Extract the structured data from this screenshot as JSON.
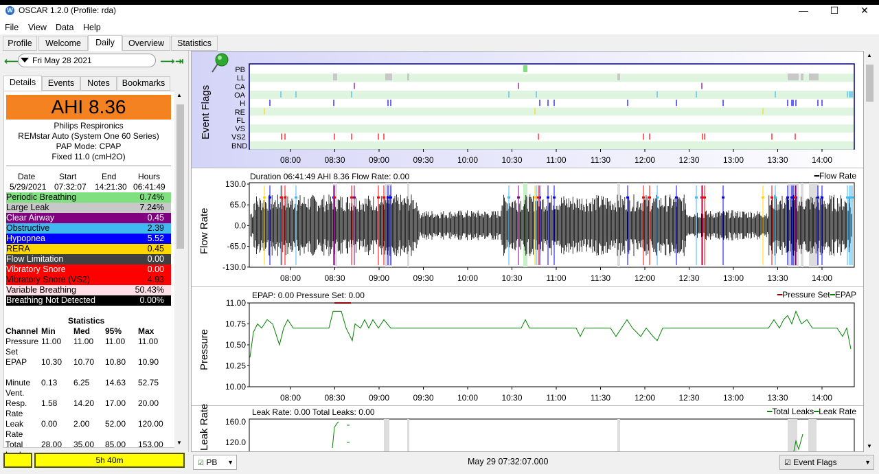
{
  "window": {
    "title": "OSCAR 1.2.0 (Profile: rda)",
    "minimize": "—",
    "maximize": "☐",
    "close": "✕",
    "app_icon": "W"
  },
  "menu": [
    "File",
    "View",
    "Data",
    "Help"
  ],
  "tabs": [
    "Profile",
    "Welcome",
    "Daily",
    "Overview",
    "Statistics"
  ],
  "date": {
    "value": "Fri May 28 2021",
    "prev": "⟵",
    "next": "⟶",
    "last": "⇥"
  },
  "left_tabs": [
    "Details",
    "Events",
    "Notes",
    "Bookmarks"
  ],
  "ahi": "AHI 8.36",
  "machine": [
    "Philips Respironics",
    "REMstar Auto (System One 60 Series)",
    "PAP Mode: CPAP",
    "Fixed 11.0 (cmH2O)"
  ],
  "session": {
    "headers": [
      "Date",
      "Start",
      "End",
      "Hours"
    ],
    "values": [
      "5/29/2021",
      "07:32:07",
      "14:21:30",
      "06:41:49"
    ]
  },
  "events": [
    {
      "label": "Periodic Breathing",
      "value": "0.74%",
      "bg": "#80e080",
      "fg": "#000"
    },
    {
      "label": "Large Leak",
      "value": "7.24%",
      "bg": "#c8c8c8",
      "fg": "#000"
    },
    {
      "label": "Clear Airway",
      "value": "0.45",
      "bg": "#800080",
      "fg": "#fff"
    },
    {
      "label": "Obstructive",
      "value": "2.39",
      "bg": "#40b8f0",
      "fg": "#000"
    },
    {
      "label": "Hypopnea",
      "value": "5.52",
      "bg": "#0000ff",
      "fg": "#fff"
    },
    {
      "label": "RERA",
      "value": "0.45",
      "bg": "#ffd700",
      "fg": "#000"
    },
    {
      "label": "Flow Limitation",
      "value": "0.00",
      "bg": "#404040",
      "fg": "#fff"
    },
    {
      "label": "Vibratory Snore",
      "value": "0.00",
      "bg": "#ff0000",
      "fg": "#fff"
    },
    {
      "label": "Vibratory Snore (VS2)",
      "value": "4.93",
      "bg": "#ff0000",
      "fg": "#000"
    },
    {
      "label": "Variable Breathing",
      "value": "50.43%",
      "bg": "#ffe0e8",
      "fg": "#000"
    },
    {
      "label": "Breathing Not Detected",
      "value": "0.00%",
      "bg": "#000000",
      "fg": "#fff"
    }
  ],
  "statistics": {
    "title": "Statistics",
    "headers": [
      "Channel",
      "Min",
      "Med",
      "95%",
      "Max"
    ],
    "rows": [
      {
        "name": "Pressure Set",
        "v": [
          "11.00",
          "11.00",
          "11.00",
          "11.00"
        ]
      },
      {
        "name": "EPAP",
        "v": [
          "10.30",
          "10.70",
          "10.80",
          "10.90"
        ]
      },
      {
        "name": "Minute Vent.",
        "v": [
          "0.13",
          "6.25",
          "14.63",
          "52.75"
        ]
      },
      {
        "name": "Resp. Rate",
        "v": [
          "1.58",
          "14.20",
          "17.00",
          "20.00"
        ]
      },
      {
        "name": "Leak Rate",
        "v": [
          "0.00",
          "2.00",
          "52.00",
          "120.00"
        ]
      },
      {
        "name": "Total Leaks",
        "v": [
          "28.00",
          "35.00",
          "85.00",
          "153.00"
        ]
      }
    ]
  },
  "status_left": "5h 40m",
  "time_ticks": [
    "08:00",
    "08:30",
    "09:00",
    "09:30",
    "10:00",
    "10:30",
    "11:00",
    "11:30",
    "12:00",
    "12:30",
    "13:00",
    "13:30",
    "14:00"
  ],
  "event_flags": {
    "ylabel": "Event Flags",
    "channels": [
      "PB",
      "LL",
      "CA",
      "OA",
      "H",
      "RE",
      "FL",
      "VS",
      "VS2",
      "BND"
    ]
  },
  "flow": {
    "ylabel": "Flow Rate",
    "header": "Duration 06:41:49 AHI 8.36 Flow Rate: 0.00",
    "legend": "Flow Rate",
    "yticks": [
      "130.0",
      "65.0",
      "0.0",
      "-65.0",
      "-130.0"
    ]
  },
  "pressure": {
    "ylabel": "Pressure",
    "header": "EPAP: 0.00 Pressure Set: 0.00",
    "legend1": "Pressure Set",
    "legend2": "EPAP",
    "yticks": [
      "11.00",
      "10.75",
      "10.50",
      "10.25",
      "10.00"
    ]
  },
  "leak": {
    "ylabel": "Leak Rate",
    "header": "Leak Rate: 0.00 Total Leaks: 0.00",
    "legend1": "Total Leaks",
    "legend2": "Leak Rate",
    "yticks": [
      "160.0",
      "120.0"
    ]
  },
  "bottom": {
    "combo": "PB",
    "time": "May 29 07:32:07.000",
    "event_flags": "Event Flags"
  },
  "colors": {
    "pb": "#80e080",
    "ll": "#c8c8c8",
    "ca": "#800080",
    "oa": "#40b8f0",
    "h": "#0000ff",
    "re": "#ffd700",
    "vs2": "#ff0000",
    "epap": "#008000",
    "ahi_bg": "#f58220",
    "status_yellow": "#ffff00"
  }
}
